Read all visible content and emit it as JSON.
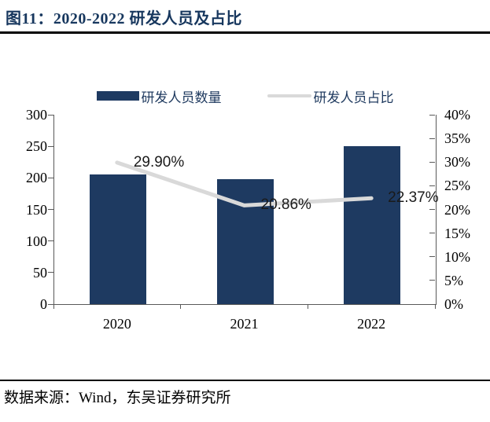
{
  "title": "图11：2020-2022 研发人员及占比",
  "footer": "数据来源：Wind，东吴证券研究所",
  "colors": {
    "bar": "#1e3a61",
    "line": "#d9d9d9",
    "title": "#17375e",
    "axis": "#595959",
    "label_text": "#1a1a1a",
    "legend_text": "#1f3a5f"
  },
  "legend": [
    {
      "label": "研发人员数量",
      "type": "bar"
    },
    {
      "label": "研发人员占比",
      "type": "line"
    }
  ],
  "chart_data": {
    "type": "bar",
    "categories": [
      "2020",
      "2021",
      "2022"
    ],
    "series": [
      {
        "name": "研发人员数量",
        "type": "bar",
        "axis": "left",
        "values": [
          205,
          198,
          250
        ]
      },
      {
        "name": "研发人员占比",
        "type": "line",
        "axis": "right",
        "values": [
          29.9,
          20.86,
          22.37
        ],
        "data_labels": [
          "29.90%",
          "20.86%",
          "22.37%"
        ]
      }
    ],
    "left_axis": {
      "min": 0,
      "max": 300,
      "ticks": [
        "300",
        "250",
        "200",
        "150",
        "100",
        "50",
        "0"
      ]
    },
    "right_axis": {
      "min": 0,
      "max": 40,
      "ticks": [
        "40%",
        "35%",
        "30%",
        "25%",
        "20%",
        "15%",
        "10%",
        "5%",
        "0%"
      ]
    },
    "grid": false,
    "legend_position": "top"
  }
}
